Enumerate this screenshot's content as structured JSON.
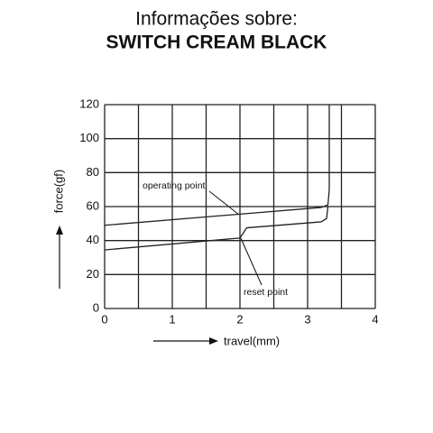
{
  "chart_data": {
    "type": "line",
    "title": "Informações sobre:",
    "subtitle": "SWITCH CREAM BLACK",
    "x_label": "travel(mm)",
    "y_label": "force(gf)",
    "xlim": [
      0,
      4
    ],
    "xticks": [
      0,
      1,
      2,
      3,
      4
    ],
    "xminor": [
      0.5,
      1.5,
      2.5,
      3.5
    ],
    "ylim": [
      0,
      120
    ],
    "yticks": [
      0,
      20,
      40,
      60,
      80,
      100,
      120
    ],
    "grid": true,
    "series": [
      {
        "color": "#222222",
        "x": [
          0,
          3.2,
          3.3,
          3.32,
          3.32
        ],
        "values": [
          49,
          59.5,
          61,
          70,
          120
        ]
      },
      {
        "color": "#222222",
        "x": [
          0,
          2.0,
          2.1,
          3.2,
          3.28,
          3.3
        ],
        "values": [
          34.5,
          41.5,
          47.5,
          51,
          53,
          60
        ]
      }
    ],
    "annotations": [
      "operating point",
      "reset point"
    ]
  }
}
